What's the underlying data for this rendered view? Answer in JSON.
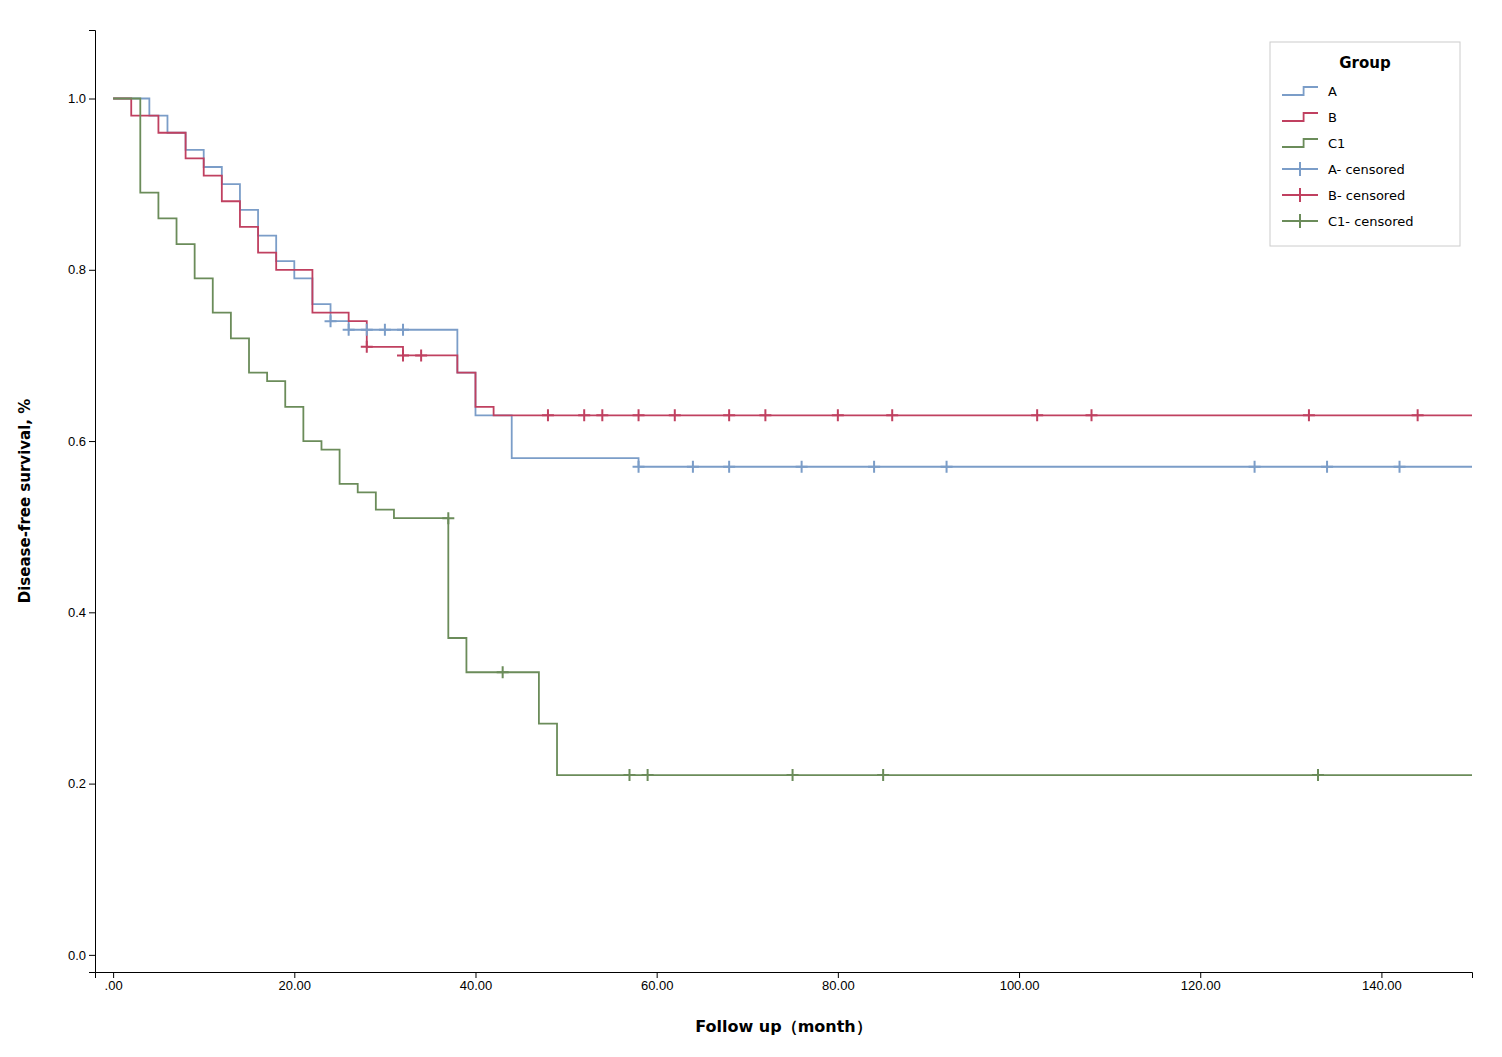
{
  "chart_data": {
    "type": "line",
    "xlabel": "Follow up（month）",
    "ylabel": "Disease-free survival, %",
    "xlim": [
      -2,
      150
    ],
    "ylim": [
      -0.02,
      1.08
    ],
    "xticks": [
      {
        "value": 0,
        "label": ".00"
      },
      {
        "value": 20.0,
        "label": "20.00"
      },
      {
        "value": 40.0,
        "label": "40.00"
      },
      {
        "value": 60.0,
        "label": "60.00"
      },
      {
        "value": 80.0,
        "label": "80.00"
      },
      {
        "value": 100.0,
        "label": "100.00"
      },
      {
        "value": 120.0,
        "label": "120.00"
      },
      {
        "value": 140.0,
        "label": "140.00"
      }
    ],
    "yticks": [
      {
        "value": 0.0,
        "label": "0.0"
      },
      0.2,
      0.4,
      0.6,
      0.8,
      {
        "value": 1.0,
        "label": "1.0"
      }
    ],
    "grid": false,
    "legend": "upper right",
    "legend_title": "Group",
    "series": [
      {
        "name": "A",
        "type": "line",
        "line_style": "step",
        "color": "#7B9DC8",
        "x": [
          0,
          0,
          4,
          4,
          6,
          6,
          8,
          8,
          10,
          10,
          12,
          12,
          14,
          14,
          16,
          16,
          18,
          18,
          20,
          20,
          22,
          22,
          24,
          24,
          26,
          26,
          28,
          28,
          30,
          30,
          32,
          32,
          34,
          34,
          36,
          36,
          38,
          38,
          40,
          40,
          42,
          42,
          44,
          44,
          46,
          46,
          48,
          48,
          58,
          58,
          150
        ],
        "values": [
          1.0,
          1.0,
          1.0,
          0.98,
          0.98,
          0.96,
          0.96,
          0.94,
          0.94,
          0.92,
          0.92,
          0.9,
          0.9,
          0.87,
          0.87,
          0.84,
          0.84,
          0.81,
          0.81,
          0.79,
          0.79,
          0.76,
          0.76,
          0.74,
          0.74,
          0.73,
          0.73,
          0.73,
          0.73,
          0.73,
          0.73,
          0.73,
          0.73,
          0.73,
          0.73,
          0.73,
          0.73,
          0.68,
          0.68,
          0.63,
          0.63,
          0.63,
          0.63,
          0.58,
          0.58,
          0.58,
          0.58,
          0.58,
          0.58,
          0.57,
          0.57
        ]
      },
      {
        "name": "B",
        "type": "line",
        "line_style": "step",
        "color": "#C04060",
        "x": [
          0,
          0,
          2,
          2,
          5,
          5,
          8,
          8,
          10,
          10,
          12,
          12,
          14,
          14,
          16,
          16,
          18,
          18,
          22,
          22,
          26,
          26,
          28,
          28,
          30,
          30,
          32,
          32,
          34,
          34,
          36,
          36,
          38,
          38,
          40,
          40,
          42,
          42,
          44,
          44,
          150
        ],
        "values": [
          1.0,
          1.0,
          1.0,
          0.98,
          0.98,
          0.96,
          0.96,
          0.93,
          0.93,
          0.91,
          0.91,
          0.88,
          0.88,
          0.85,
          0.85,
          0.82,
          0.82,
          0.8,
          0.8,
          0.75,
          0.75,
          0.74,
          0.74,
          0.71,
          0.71,
          0.71,
          0.71,
          0.7,
          0.7,
          0.7,
          0.7,
          0.7,
          0.7,
          0.68,
          0.68,
          0.64,
          0.64,
          0.63,
          0.63,
          0.63,
          0.63
        ]
      },
      {
        "name": "C1",
        "type": "line",
        "line_style": "step",
        "color": "#6B8C5A",
        "x": [
          0,
          0,
          3,
          3,
          5,
          5,
          7,
          7,
          9,
          9,
          11,
          11,
          13,
          13,
          15,
          15,
          17,
          17,
          19,
          19,
          21,
          21,
          23,
          23,
          25,
          25,
          27,
          27,
          29,
          29,
          31,
          31,
          33,
          33,
          37,
          37,
          39,
          39,
          41,
          41,
          43,
          43,
          45,
          45,
          47,
          47,
          49,
          49,
          51,
          51,
          57,
          57,
          63,
          63,
          71,
          71,
          77,
          77,
          85,
          85,
          131,
          131,
          150
        ],
        "values": [
          1.0,
          1.0,
          1.0,
          0.89,
          0.89,
          0.86,
          0.86,
          0.83,
          0.83,
          0.79,
          0.79,
          0.75,
          0.75,
          0.72,
          0.72,
          0.68,
          0.68,
          0.67,
          0.67,
          0.64,
          0.64,
          0.6,
          0.6,
          0.59,
          0.59,
          0.55,
          0.55,
          0.54,
          0.54,
          0.52,
          0.52,
          0.51,
          0.51,
          0.51,
          0.51,
          0.37,
          0.37,
          0.33,
          0.33,
          0.33,
          0.33,
          0.33,
          0.33,
          0.33,
          0.33,
          0.27,
          0.27,
          0.21,
          0.21,
          0.21,
          0.21,
          0.21,
          0.21,
          0.21,
          0.21,
          0.21,
          0.21,
          0.21,
          0.21,
          0.21,
          0.21,
          0.21,
          0.21
        ]
      },
      {
        "name": "A- censored",
        "type": "scatter",
        "marker": "+",
        "color": "#7B9DC8",
        "x": [
          24,
          26,
          28,
          30,
          32,
          58,
          64,
          68,
          76,
          84,
          92,
          126,
          134,
          142
        ],
        "values": [
          0.74,
          0.73,
          0.73,
          0.73,
          0.73,
          0.57,
          0.57,
          0.57,
          0.57,
          0.57,
          0.57,
          0.57,
          0.57,
          0.57
        ]
      },
      {
        "name": "B- censored",
        "type": "scatter",
        "marker": "+",
        "color": "#C04060",
        "x": [
          28,
          32,
          34,
          48,
          52,
          54,
          58,
          62,
          68,
          72,
          80,
          86,
          102,
          108,
          132,
          144
        ],
        "values": [
          0.71,
          0.7,
          0.7,
          0.63,
          0.63,
          0.63,
          0.63,
          0.63,
          0.63,
          0.63,
          0.63,
          0.63,
          0.63,
          0.63,
          0.63,
          0.63
        ]
      },
      {
        "name": "C1- censored",
        "type": "scatter",
        "marker": "+",
        "color": "#6B8C5A",
        "x": [
          37,
          43,
          57,
          59,
          75,
          85,
          133
        ],
        "values": [
          0.51,
          0.33,
          0.21,
          0.21,
          0.21,
          0.21,
          0.21
        ]
      }
    ]
  }
}
